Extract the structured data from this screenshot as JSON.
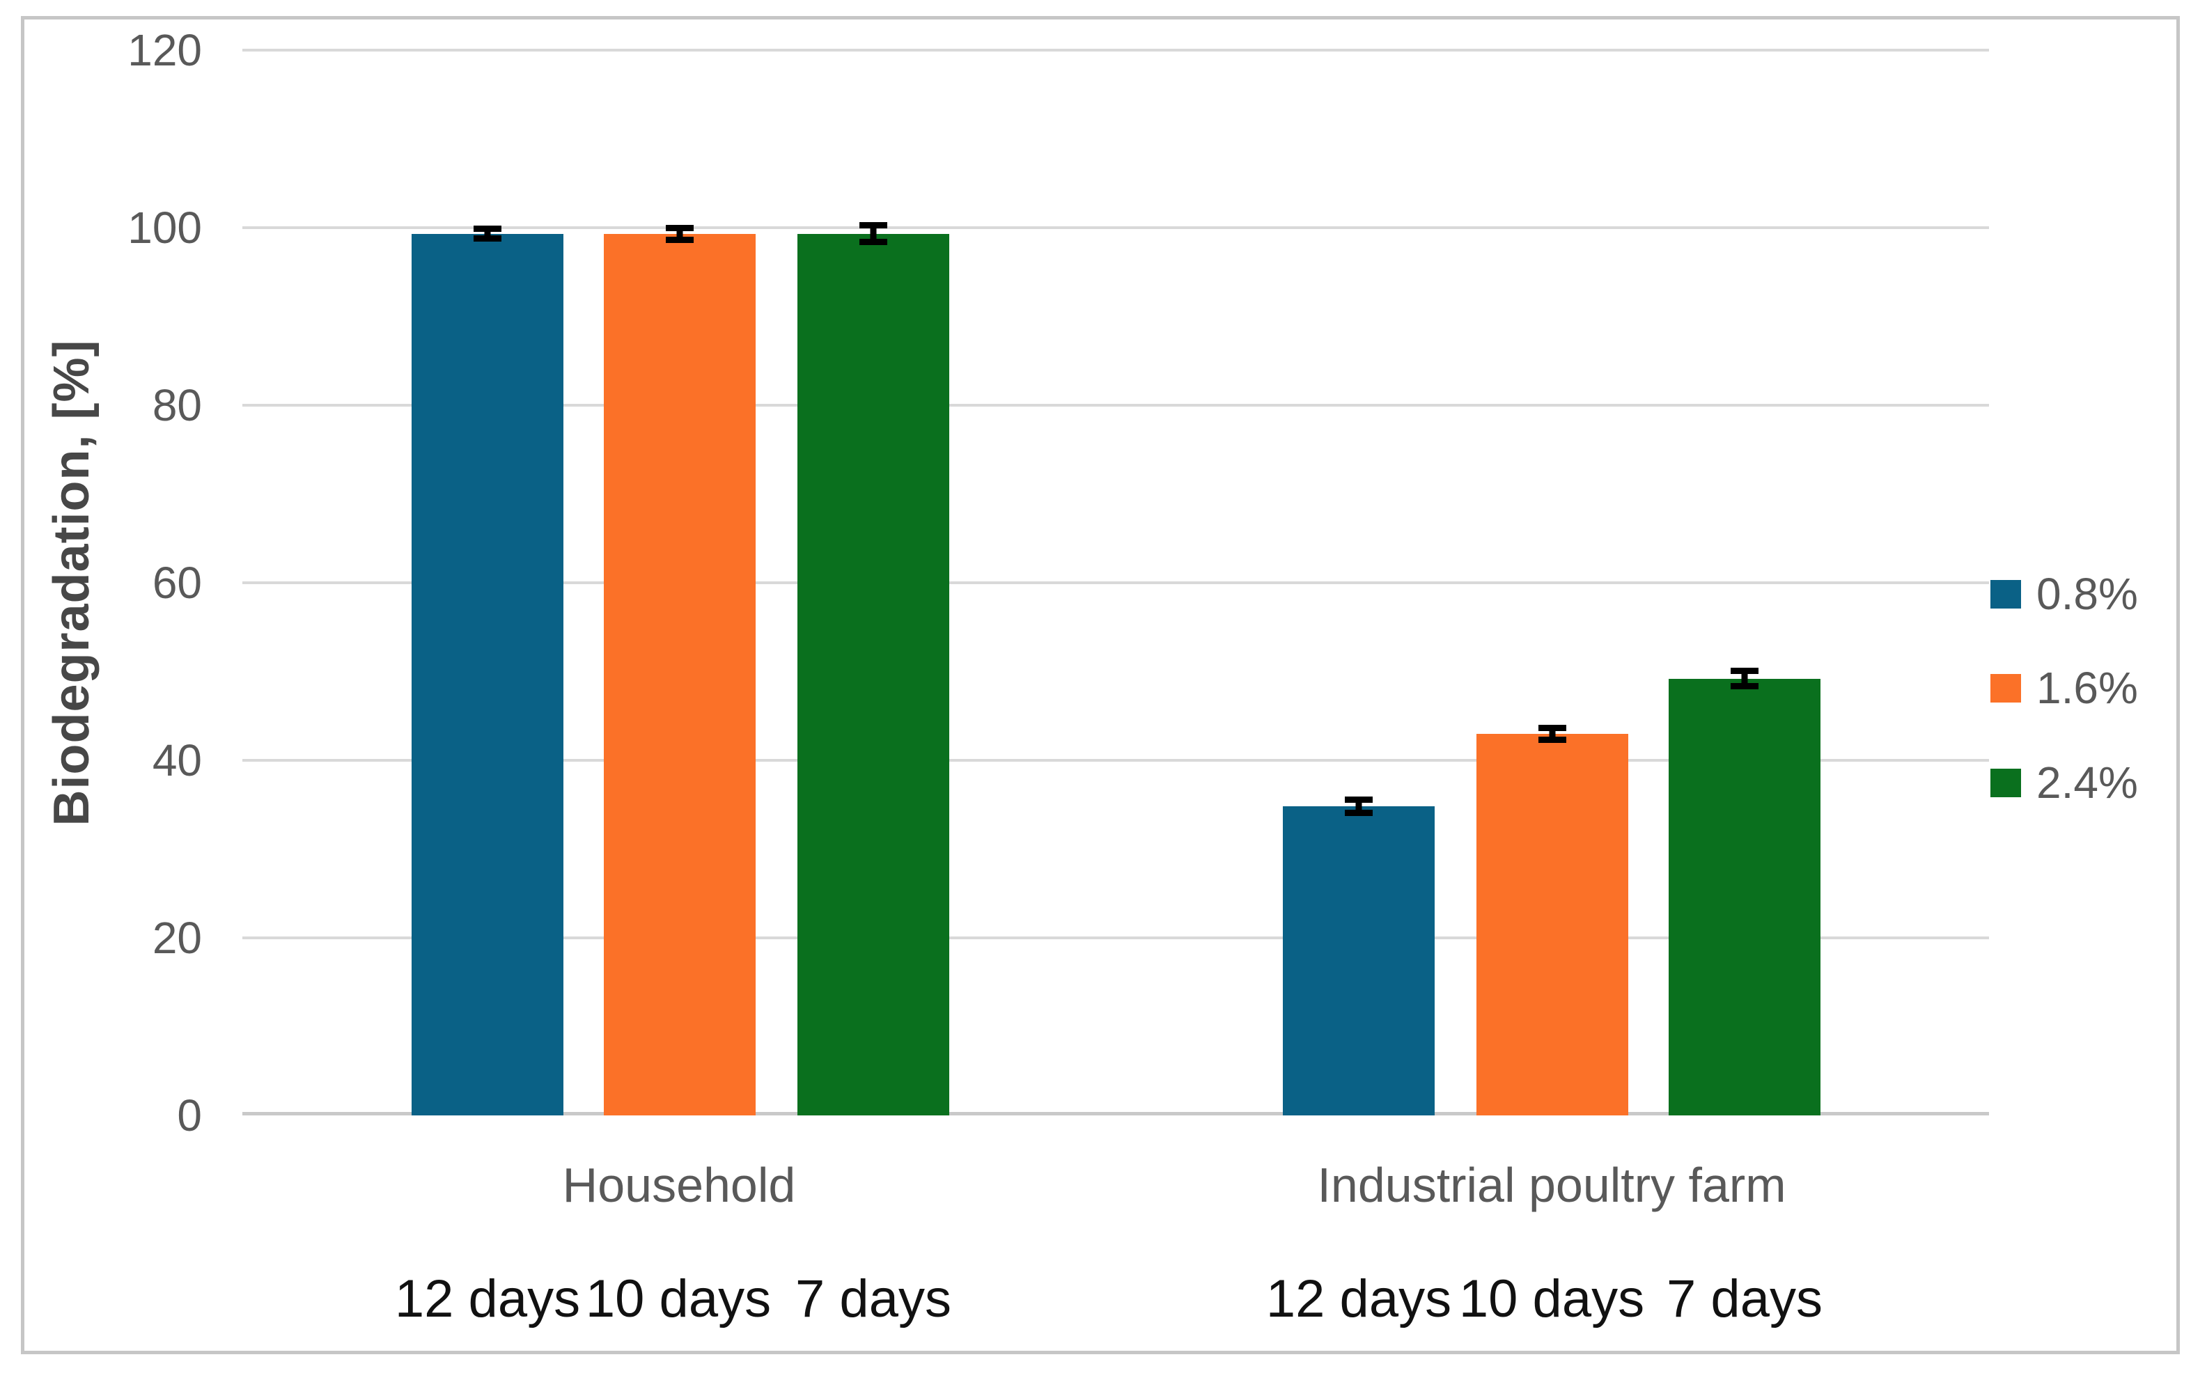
{
  "chart_data": {
    "type": "bar",
    "title": "",
    "ylabel": "Biodegradation, [%]",
    "xlabel": "",
    "ylim": [
      0,
      120
    ],
    "yticks": [
      0,
      20,
      40,
      60,
      80,
      100,
      120
    ],
    "grid": true,
    "legend_position": "right",
    "series_names": [
      "0.8%",
      "1.6%",
      "2.4%"
    ],
    "categories": [
      "Household",
      "Industrial poultry farm"
    ],
    "groups": [
      {
        "label": "Household",
        "bars": [
          {
            "series": "0.8%",
            "time_label": "12 days",
            "value": 99.3,
            "error": 0.9
          },
          {
            "series": "1.6%",
            "time_label": "10 days",
            "value": 99.3,
            "error": 1.0
          },
          {
            "series": "2.4%",
            "time_label": "7 days",
            "value": 99.3,
            "error": 1.3
          }
        ]
      },
      {
        "label": "Industrial poultry farm",
        "bars": [
          {
            "series": "0.8%",
            "time_label": "12 days",
            "value": 34.8,
            "error": 1.1
          },
          {
            "series": "1.6%",
            "time_label": "10 days",
            "value": 43.0,
            "error": 1.0
          },
          {
            "series": "2.4%",
            "time_label": "7 days",
            "value": 49.2,
            "error": 1.2
          }
        ]
      }
    ],
    "legend": [
      {
        "label": "0.8%",
        "color": "#0a6186"
      },
      {
        "label": "1.6%",
        "color": "#fb7128"
      },
      {
        "label": "2.4%",
        "color": "#0a701e"
      }
    ]
  },
  "style_colors": {
    "bar_blue": "#0a6186",
    "bar_orange": "#fb7128",
    "bar_green": "#0a701e",
    "gridline": "#d9d9d9",
    "axis_line": "#c9c9c9",
    "frame_border": "#c6c6c6",
    "tick_text": "#595959",
    "category_text": "#595959",
    "day_text": "#111111",
    "ytitle_text": "#474747",
    "error_bar": "#000000"
  }
}
